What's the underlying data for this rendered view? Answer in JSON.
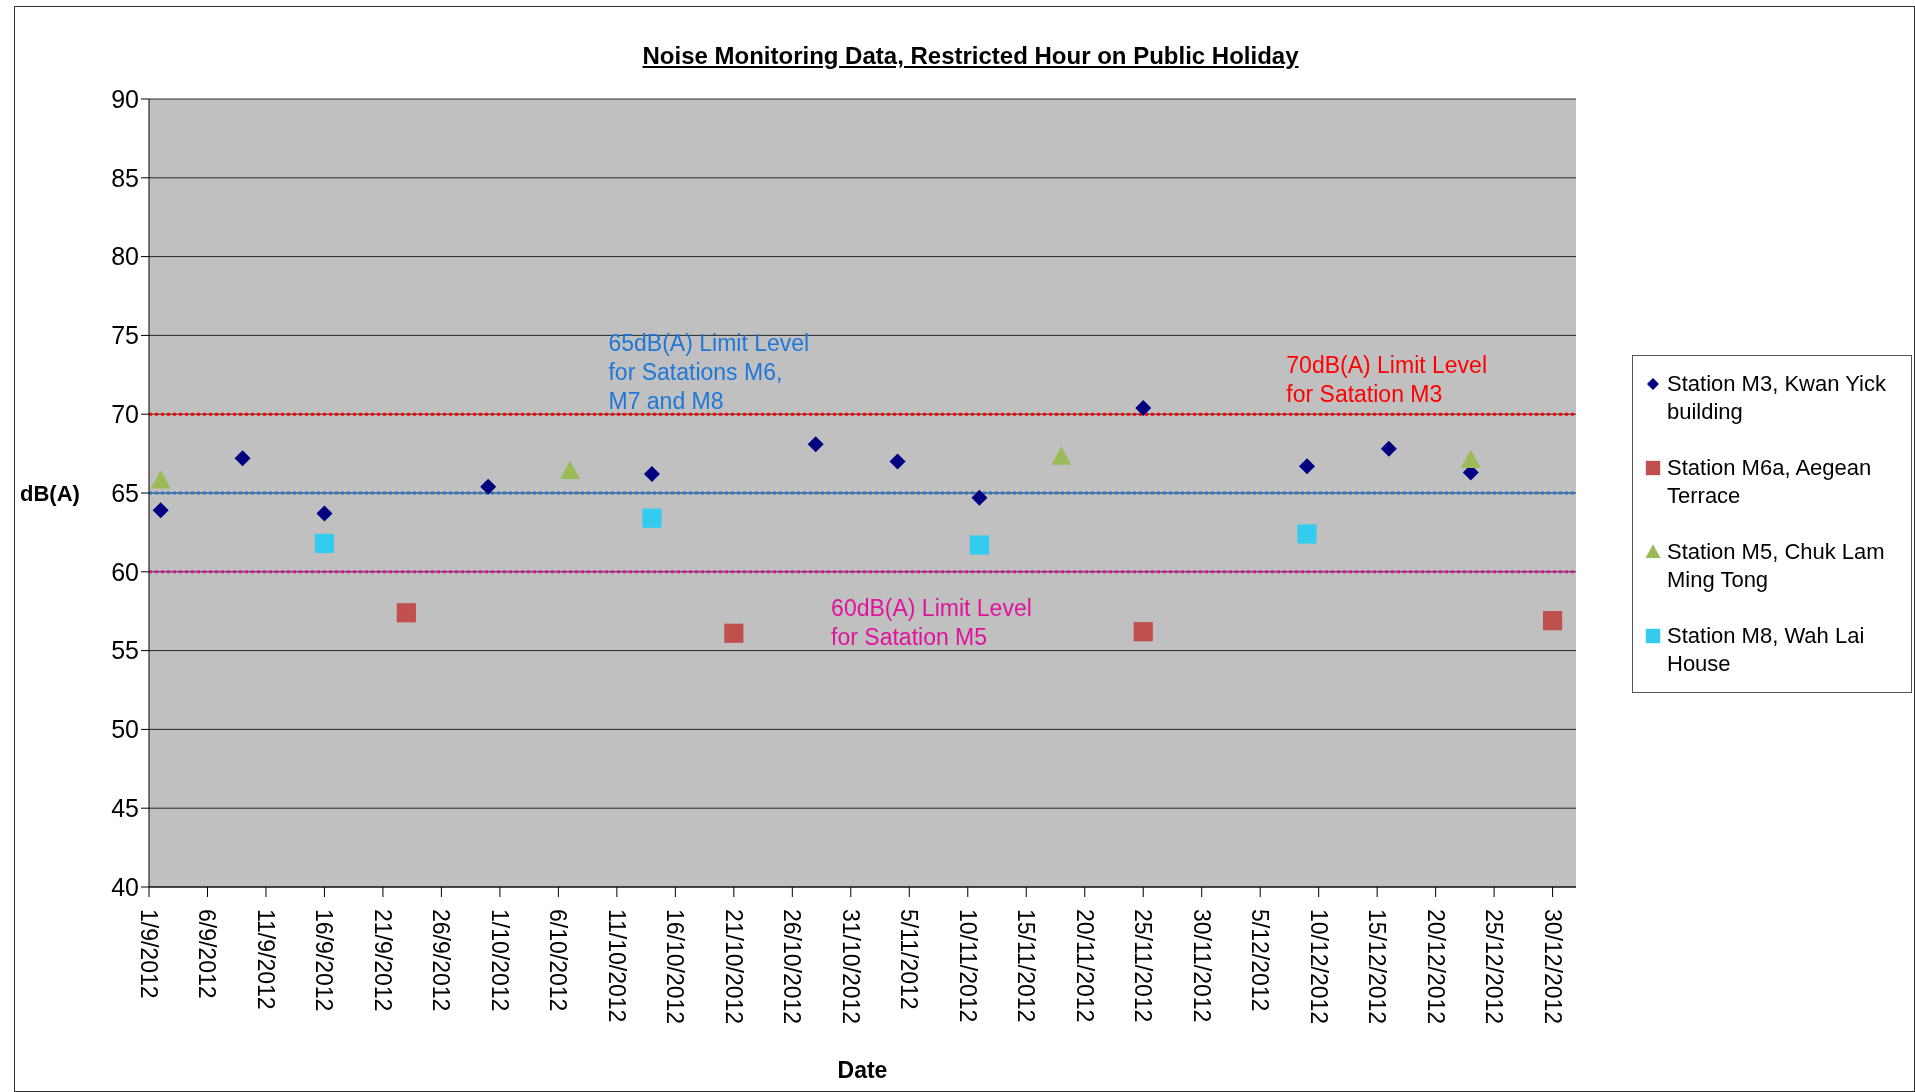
{
  "chart_data": {
    "type": "scatter",
    "title": "Noise Monitoring Data, Restricted Hour on Public Holiday",
    "xlabel": "Date",
    "ylabel": "dB(A)",
    "xlim": [
      "2012-09-01",
      "2013-01-01"
    ],
    "xticks": [
      {
        "value": "2012-09-01",
        "label": "1/9/2012"
      },
      {
        "value": "2012-09-06",
        "label": "6/9/2012"
      },
      {
        "value": "2012-09-11",
        "label": "11/9/2012"
      },
      {
        "value": "2012-09-16",
        "label": "16/9/2012"
      },
      {
        "value": "2012-09-21",
        "label": "21/9/2012"
      },
      {
        "value": "2012-09-26",
        "label": "26/9/2012"
      },
      {
        "value": "2012-10-01",
        "label": "1/10/2012"
      },
      {
        "value": "2012-10-06",
        "label": "6/10/2012"
      },
      {
        "value": "2012-10-11",
        "label": "11/10/2012"
      },
      {
        "value": "2012-10-16",
        "label": "16/10/2012"
      },
      {
        "value": "2012-10-21",
        "label": "21/10/2012"
      },
      {
        "value": "2012-10-26",
        "label": "26/10/2012"
      },
      {
        "value": "2012-10-31",
        "label": "31/10/2012"
      },
      {
        "value": "2012-11-05",
        "label": "5/11/2012"
      },
      {
        "value": "2012-11-10",
        "label": "10/11/2012"
      },
      {
        "value": "2012-11-15",
        "label": "15/11/2012"
      },
      {
        "value": "2012-11-20",
        "label": "20/11/2012"
      },
      {
        "value": "2012-11-25",
        "label": "25/11/2012"
      },
      {
        "value": "2012-11-30",
        "label": "30/11/2012"
      },
      {
        "value": "2012-12-05",
        "label": "5/12/2012"
      },
      {
        "value": "2012-12-10",
        "label": "10/12/2012"
      },
      {
        "value": "2012-12-15",
        "label": "15/12/2012"
      },
      {
        "value": "2012-12-20",
        "label": "20/12/2012"
      },
      {
        "value": "2012-12-25",
        "label": "25/12/2012"
      },
      {
        "value": "2012-12-30",
        "label": "30/12/2012"
      }
    ],
    "ylim": [
      40,
      90
    ],
    "yticks": [
      40,
      45,
      50,
      55,
      60,
      65,
      70,
      75,
      80,
      85,
      90
    ],
    "grid": "y",
    "legend": "right",
    "series": [
      {
        "name": "Station M3, Kwan Yick building",
        "color": "#000080",
        "marker": "diamond",
        "x": [
          "2012-09-02",
          "2012-09-09",
          "2012-09-16",
          "2012-09-30",
          "2012-10-14",
          "2012-10-28",
          "2012-11-04",
          "2012-11-11",
          "2012-11-25",
          "2012-12-09",
          "2012-12-16",
          "2012-12-23"
        ],
        "values": [
          63.9,
          67.2,
          63.7,
          65.4,
          66.2,
          68.1,
          67.0,
          64.7,
          70.4,
          66.7,
          67.8,
          66.3
        ]
      },
      {
        "name": "Station M6a, Aegean Terrace",
        "color": "#c0504d",
        "marker": "square",
        "x": [
          "2012-09-23",
          "2012-10-21",
          "2012-11-25",
          "2012-12-30"
        ],
        "values": [
          57.4,
          56.1,
          56.2,
          56.9
        ]
      },
      {
        "name": "Station M5, Chuk Lam Ming Tong",
        "color": "#9bbb59",
        "marker": "triangle",
        "x": [
          "2012-09-02",
          "2012-10-07",
          "2012-11-18",
          "2012-12-23"
        ],
        "values": [
          65.8,
          66.4,
          67.3,
          67.1
        ]
      },
      {
        "name": "Station M8, Wah Lai House",
        "color": "#33ccee",
        "marker": "square",
        "x": [
          "2012-09-16",
          "2012-10-14",
          "2012-11-11",
          "2012-12-09"
        ],
        "values": [
          61.8,
          63.4,
          61.7,
          62.4
        ]
      }
    ],
    "ref_lines": [
      {
        "axis": "y",
        "value": 70,
        "label": "70dB(A) Limit Level\nfor Satation M3",
        "color": "#ff0000",
        "line_style": "dotted"
      },
      {
        "axis": "y",
        "value": 65,
        "label": "65dB(A) Limit Level\nfor Satations M6,\nM7 and M8",
        "color": "#1f77d8",
        "line_style": "dotted"
      },
      {
        "axis": "y",
        "value": 60,
        "label": "60dB(A) Limit Level\nfor Satation M5",
        "color": "#e0139c",
        "line_style": "dotted"
      }
    ]
  }
}
